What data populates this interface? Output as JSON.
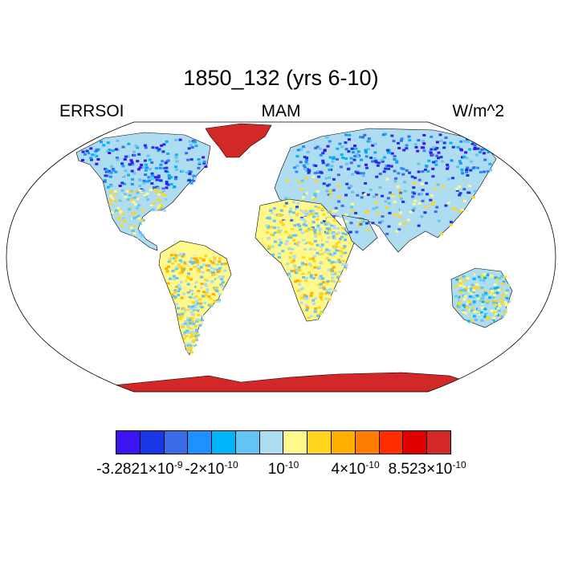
{
  "title": "1850_132 (yrs 6-10)",
  "left_label": "ERRSOI",
  "center_label": "MAM",
  "right_label": "W/m^2",
  "colorbar": {
    "colors": [
      "#3d14f0",
      "#1a38e6",
      "#3b6be6",
      "#1e90ff",
      "#00b5f7",
      "#62c4f2",
      "#aedcf0",
      "#fff88a",
      "#ffd51e",
      "#ffae00",
      "#ff7d00",
      "#ff2d00",
      "#e00000",
      "#d32828"
    ],
    "tick_labels": [
      {
        "mantissa": "-3.2821",
        "times": "×",
        "base": "10",
        "exp": "-9"
      },
      {
        "mantissa": "-2",
        "times": "×",
        "base": "10",
        "exp": "-10"
      },
      {
        "mantissa": "",
        "times": "",
        "base": "10",
        "exp": "-10"
      },
      {
        "mantissa": "4",
        "times": "×",
        "base": "10",
        "exp": "-10"
      },
      {
        "mantissa": "8.523",
        "times": "×",
        "base": "10",
        "exp": "-10"
      }
    ]
  }
}
